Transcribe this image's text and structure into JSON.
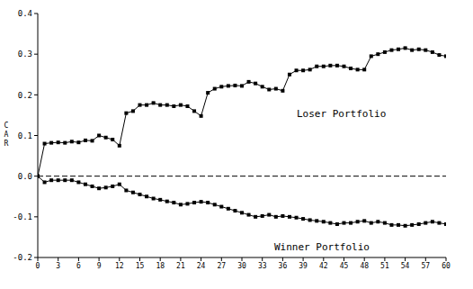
{
  "chart_data": {
    "type": "line",
    "y_label": "CAR",
    "x": [
      0,
      1,
      2,
      3,
      4,
      5,
      6,
      7,
      8,
      9,
      10,
      11,
      12,
      13,
      14,
      15,
      16,
      17,
      18,
      19,
      20,
      21,
      22,
      23,
      24,
      25,
      26,
      27,
      28,
      29,
      30,
      31,
      32,
      33,
      34,
      35,
      36,
      37,
      38,
      39,
      40,
      41,
      42,
      43,
      44,
      45,
      46,
      47,
      48,
      49,
      50,
      51,
      52,
      53,
      54,
      55,
      56,
      57,
      58,
      59,
      60
    ],
    "series": [
      {
        "name": "Loser Portfolio",
        "color": "#000000",
        "marker": "square",
        "line_style": "solid",
        "values": [
          0,
          0.08,
          0.082,
          0.083,
          0.082,
          0.085,
          0.083,
          0.088,
          0.087,
          0.1,
          0.095,
          0.09,
          0.075,
          0.155,
          0.16,
          0.175,
          0.175,
          0.18,
          0.175,
          0.175,
          0.172,
          0.175,
          0.172,
          0.16,
          0.148,
          0.205,
          0.215,
          0.22,
          0.222,
          0.223,
          0.222,
          0.232,
          0.228,
          0.22,
          0.213,
          0.215,
          0.21,
          0.25,
          0.26,
          0.26,
          0.262,
          0.27,
          0.27,
          0.272,
          0.272,
          0.27,
          0.265,
          0.262,
          0.262,
          0.295,
          0.3,
          0.305,
          0.31,
          0.312,
          0.315,
          0.31,
          0.312,
          0.31,
          0.305,
          0.298,
          0.295
        ]
      },
      {
        "name": "Winner Portfolio",
        "color": "#000000",
        "marker": "square",
        "line_style": "solid",
        "values": [
          0,
          -0.015,
          -0.01,
          -0.01,
          -0.01,
          -0.01,
          -0.015,
          -0.02,
          -0.025,
          -0.03,
          -0.028,
          -0.025,
          -0.02,
          -0.035,
          -0.04,
          -0.045,
          -0.05,
          -0.055,
          -0.058,
          -0.062,
          -0.065,
          -0.07,
          -0.068,
          -0.065,
          -0.063,
          -0.065,
          -0.07,
          -0.075,
          -0.08,
          -0.085,
          -0.09,
          -0.095,
          -0.1,
          -0.098,
          -0.095,
          -0.1,
          -0.098,
          -0.1,
          -0.102,
          -0.105,
          -0.108,
          -0.11,
          -0.112,
          -0.115,
          -0.118,
          -0.115,
          -0.115,
          -0.112,
          -0.11,
          -0.115,
          -0.112,
          -0.115,
          -0.12,
          -0.12,
          -0.122,
          -0.12,
          -0.118,
          -0.115,
          -0.112,
          -0.115,
          -0.118
        ]
      }
    ],
    "xlim": [
      0,
      60
    ],
    "xticks": [
      0,
      3,
      6,
      9,
      12,
      15,
      18,
      21,
      24,
      27,
      30,
      33,
      36,
      39,
      42,
      45,
      48,
      51,
      54,
      57,
      60
    ],
    "ylim": [
      -0.2,
      0.4
    ],
    "yticks": [
      -0.2,
      -0.1,
      {
        "value": 0,
        "label": "0.0"
      },
      0.1,
      0.2,
      0.3,
      0.4
    ],
    "grid": false
  }
}
